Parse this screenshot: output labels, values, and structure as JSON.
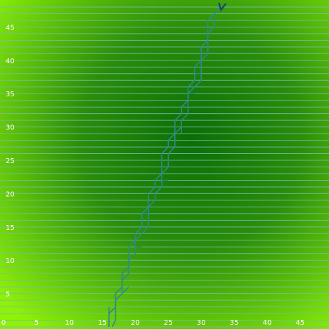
{
  "chart_data": {
    "type": "line",
    "title": "",
    "xlabel": "",
    "ylabel": "",
    "xlim": [
      0,
      48
    ],
    "ylim": [
      0,
      48
    ],
    "x_ticks": [
      "0",
      "5",
      "10",
      "15",
      "20",
      "25",
      "30",
      "35",
      "40",
      "45"
    ],
    "y_ticks": [
      "0",
      "5",
      "10",
      "15",
      "20",
      "25",
      "30",
      "35",
      "40",
      "45"
    ],
    "grid": "horizontal lines at every integer y",
    "colors": {
      "background_edge": "#8ef208",
      "background_center": "#076e07",
      "grid": "#7ab8b0",
      "trail": "#2e8a8c",
      "marker": "#1a4a6a"
    },
    "series": [
      {
        "values": [
          [
            16.5,
            0
          ],
          [
            17,
            1
          ],
          [
            17,
            4
          ],
          [
            18,
            5
          ],
          [
            18,
            7
          ],
          [
            19,
            8
          ],
          [
            19,
            10
          ],
          [
            20,
            11
          ],
          [
            20,
            13
          ],
          [
            21,
            14
          ],
          [
            22,
            15
          ],
          [
            22,
            18
          ],
          [
            23,
            19
          ],
          [
            23,
            20
          ],
          [
            24,
            21
          ],
          [
            24,
            23
          ],
          [
            25,
            24
          ],
          [
            25,
            26
          ],
          [
            26,
            27
          ],
          [
            26,
            29
          ],
          [
            27,
            30
          ],
          [
            27,
            31
          ],
          [
            28,
            32
          ],
          [
            28,
            35
          ],
          [
            29,
            36
          ],
          [
            30,
            37
          ],
          [
            30,
            40
          ],
          [
            31,
            41
          ],
          [
            31,
            44
          ],
          [
            32,
            45
          ],
          [
            32,
            47
          ],
          [
            33,
            48
          ]
        ]
      },
      {
        "values": [
          [
            16,
            0
          ],
          [
            16,
            2
          ],
          [
            17,
            3
          ],
          [
            17,
            5
          ],
          [
            18,
            6
          ],
          [
            18,
            8
          ],
          [
            19,
            9
          ],
          [
            19,
            12
          ],
          [
            20,
            13
          ],
          [
            20,
            14
          ],
          [
            21,
            15
          ],
          [
            21,
            17
          ],
          [
            22,
            18
          ],
          [
            22,
            20
          ],
          [
            23,
            21
          ],
          [
            23,
            22
          ],
          [
            24,
            23
          ],
          [
            24,
            26
          ],
          [
            25,
            27
          ],
          [
            25,
            28
          ],
          [
            26,
            29
          ],
          [
            26,
            31
          ],
          [
            27,
            32
          ],
          [
            27,
            33
          ],
          [
            28,
            34
          ],
          [
            28,
            36
          ],
          [
            29,
            37
          ],
          [
            29,
            39
          ],
          [
            30,
            40
          ],
          [
            30,
            42
          ],
          [
            31,
            43
          ],
          [
            31,
            46
          ],
          [
            32,
            47
          ],
          [
            33,
            48
          ]
        ]
      }
    ],
    "branches": [
      [
        [
          16,
          2
        ],
        [
          16,
          3
        ]
      ],
      [
        [
          18,
          5
        ],
        [
          19,
          6
        ]
      ],
      [
        [
          20,
          12
        ],
        [
          21,
          12
        ]
      ],
      [
        [
          22,
          17
        ],
        [
          21,
          17
        ]
      ],
      [
        [
          24,
          22
        ],
        [
          25,
          22
        ]
      ],
      [
        [
          26,
          29
        ],
        [
          26,
          30
        ]
      ],
      [
        [
          27,
          30
        ],
        [
          27,
          29
        ]
      ],
      [
        [
          28,
          35
        ],
        [
          29,
          35
        ]
      ],
      [
        [
          29,
          38
        ],
        [
          30,
          38
        ]
      ],
      [
        [
          31,
          41
        ],
        [
          31,
          42
        ]
      ],
      [
        [
          32,
          45
        ],
        [
          32,
          46
        ]
      ]
    ],
    "marker": {
      "x": 33,
      "y": 48
    }
  }
}
